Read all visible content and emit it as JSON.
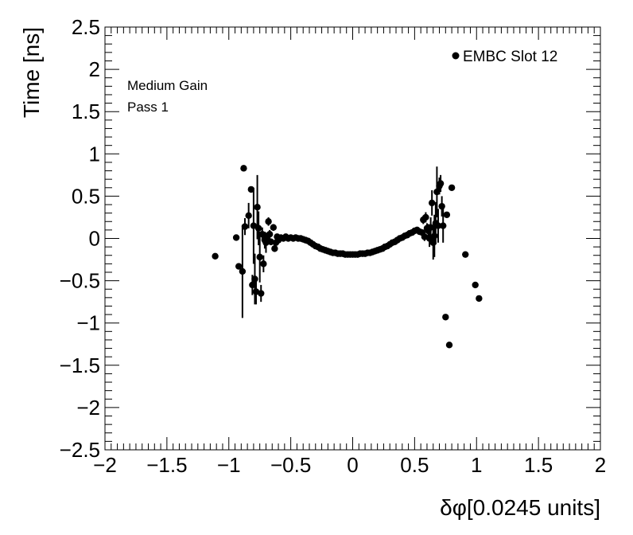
{
  "chart_data": {
    "type": "scatter",
    "title": "",
    "xlabel": "δφ[0.0245 units]",
    "ylabel": "Time [ns]",
    "xlim": [
      -2,
      2
    ],
    "ylim": [
      -2.5,
      2.5
    ],
    "x_ticks": [
      -2,
      -1.5,
      -1,
      -0.5,
      0,
      0.5,
      1,
      1.5,
      2
    ],
    "y_ticks": [
      -2.5,
      -2,
      -1.5,
      -1,
      -0.5,
      0,
      0.5,
      1,
      1.5,
      2,
      2.5
    ],
    "x_tick_labels": [
      "−2",
      "−1.5",
      "−1",
      "−0.5",
      "0",
      "0.5",
      "1",
      "1.5",
      "2"
    ],
    "y_tick_labels": [
      "−2.5",
      "−2",
      "−1.5",
      "−1",
      "−0.5",
      "0",
      "0.5",
      "1",
      "1.5",
      "2",
      "2.5"
    ],
    "grid": false,
    "legend_position": "top-right",
    "annotations": [
      "Medium Gain",
      "Pass 1"
    ],
    "series": [
      {
        "name": "EMBC Slot 12",
        "color": "#000000",
        "points": [
          {
            "x": -1.11,
            "y": -0.21,
            "err": 0
          },
          {
            "x": -0.94,
            "y": 0.01,
            "err": 0
          },
          {
            "x": -0.92,
            "y": -0.33,
            "err": 0
          },
          {
            "x": -0.89,
            "y": -0.39,
            "err": 0.55
          },
          {
            "x": -0.88,
            "y": 0.83,
            "err": 0
          },
          {
            "x": -0.87,
            "y": 0.14,
            "err": 0.1
          },
          {
            "x": -0.84,
            "y": 0.27,
            "err": 0.15
          },
          {
            "x": -0.82,
            "y": 0.58,
            "err": 0
          },
          {
            "x": -0.81,
            "y": -0.55,
            "err": 0.12
          },
          {
            "x": -0.8,
            "y": 0.15,
            "err": 0.45
          },
          {
            "x": -0.79,
            "y": -0.48,
            "err": 0.3
          },
          {
            "x": -0.78,
            "y": -0.63,
            "err": 0.15
          },
          {
            "x": -0.77,
            "y": 0.37,
            "err": 0.38
          },
          {
            "x": -0.76,
            "y": 0.12,
            "err": 0.2
          },
          {
            "x": -0.75,
            "y": -0.22,
            "err": 0.3
          },
          {
            "x": -0.74,
            "y": -0.65,
            "err": 0.1
          },
          {
            "x": -0.73,
            "y": 0.05,
            "err": 0.08
          },
          {
            "x": -0.72,
            "y": -0.3,
            "err": 0.1
          },
          {
            "x": -0.71,
            "y": -0.02,
            "err": 0.1
          },
          {
            "x": -0.7,
            "y": -0.05,
            "err": 0.12
          },
          {
            "x": -0.69,
            "y": 0.0,
            "err": 0.05
          },
          {
            "x": -0.68,
            "y": 0.2,
            "err": 0.05
          },
          {
            "x": -0.67,
            "y": 0.05,
            "err": 0.05
          },
          {
            "x": -0.66,
            "y": -0.04,
            "err": 0.04
          },
          {
            "x": -0.64,
            "y": 0.13,
            "err": 0.04
          },
          {
            "x": -0.63,
            "y": -0.12,
            "err": 0.04
          },
          {
            "x": -0.62,
            "y": -0.05,
            "err": 0.03
          },
          {
            "x": -0.61,
            "y": 0.02,
            "err": 0.03
          },
          {
            "x": -0.6,
            "y": -0.02,
            "err": 0.03
          },
          {
            "x": -0.58,
            "y": 0.01,
            "err": 0.03
          },
          {
            "x": -0.56,
            "y": 0.0,
            "err": 0.02
          },
          {
            "x": -0.54,
            "y": 0.02,
            "err": 0.02
          },
          {
            "x": -0.52,
            "y": 0.0,
            "err": 0.02
          },
          {
            "x": -0.5,
            "y": 0.01,
            "err": 0.02
          },
          {
            "x": -0.48,
            "y": 0.0,
            "err": 0.02
          },
          {
            "x": -0.46,
            "y": 0.01,
            "err": 0.01
          },
          {
            "x": -0.44,
            "y": 0.0,
            "err": 0.01
          },
          {
            "x": -0.42,
            "y": 0.0,
            "err": 0.01
          },
          {
            "x": -0.4,
            "y": -0.01,
            "err": 0.01
          },
          {
            "x": -0.38,
            "y": -0.02,
            "err": 0.01
          },
          {
            "x": -0.36,
            "y": -0.03,
            "err": 0.01
          },
          {
            "x": -0.34,
            "y": -0.05,
            "err": 0.01
          },
          {
            "x": -0.32,
            "y": -0.07,
            "err": 0.01
          },
          {
            "x": -0.3,
            "y": -0.09,
            "err": 0.01
          },
          {
            "x": -0.28,
            "y": -0.1,
            "err": 0.01
          },
          {
            "x": -0.26,
            "y": -0.12,
            "err": 0.01
          },
          {
            "x": -0.24,
            "y": -0.13,
            "err": 0.01
          },
          {
            "x": -0.22,
            "y": -0.14,
            "err": 0.01
          },
          {
            "x": -0.2,
            "y": -0.15,
            "err": 0.01
          },
          {
            "x": -0.18,
            "y": -0.16,
            "err": 0.01
          },
          {
            "x": -0.16,
            "y": -0.17,
            "err": 0.01
          },
          {
            "x": -0.14,
            "y": -0.17,
            "err": 0.01
          },
          {
            "x": -0.12,
            "y": -0.18,
            "err": 0.01
          },
          {
            "x": -0.1,
            "y": -0.18,
            "err": 0.01
          },
          {
            "x": -0.08,
            "y": -0.18,
            "err": 0.01
          },
          {
            "x": -0.06,
            "y": -0.19,
            "err": 0.01
          },
          {
            "x": -0.04,
            "y": -0.19,
            "err": 0.01
          },
          {
            "x": -0.02,
            "y": -0.19,
            "err": 0.01
          },
          {
            "x": 0.0,
            "y": -0.19,
            "err": 0.01
          },
          {
            "x": 0.02,
            "y": -0.19,
            "err": 0.01
          },
          {
            "x": 0.04,
            "y": -0.19,
            "err": 0.01
          },
          {
            "x": 0.06,
            "y": -0.18,
            "err": 0.01
          },
          {
            "x": 0.08,
            "y": -0.18,
            "err": 0.01
          },
          {
            "x": 0.1,
            "y": -0.18,
            "err": 0.01
          },
          {
            "x": 0.12,
            "y": -0.17,
            "err": 0.01
          },
          {
            "x": 0.14,
            "y": -0.17,
            "err": 0.01
          },
          {
            "x": 0.16,
            "y": -0.16,
            "err": 0.01
          },
          {
            "x": 0.18,
            "y": -0.15,
            "err": 0.01
          },
          {
            "x": 0.2,
            "y": -0.14,
            "err": 0.01
          },
          {
            "x": 0.22,
            "y": -0.13,
            "err": 0.01
          },
          {
            "x": 0.24,
            "y": -0.12,
            "err": 0.01
          },
          {
            "x": 0.26,
            "y": -0.1,
            "err": 0.01
          },
          {
            "x": 0.28,
            "y": -0.09,
            "err": 0.01
          },
          {
            "x": 0.3,
            "y": -0.07,
            "err": 0.01
          },
          {
            "x": 0.32,
            "y": -0.05,
            "err": 0.01
          },
          {
            "x": 0.34,
            "y": -0.04,
            "err": 0.01
          },
          {
            "x": 0.36,
            "y": -0.02,
            "err": 0.01
          },
          {
            "x": 0.38,
            "y": 0.0,
            "err": 0.01
          },
          {
            "x": 0.4,
            "y": 0.01,
            "err": 0.01
          },
          {
            "x": 0.42,
            "y": 0.03,
            "err": 0.02
          },
          {
            "x": 0.44,
            "y": 0.04,
            "err": 0.02
          },
          {
            "x": 0.46,
            "y": 0.06,
            "err": 0.02
          },
          {
            "x": 0.48,
            "y": 0.07,
            "err": 0.02
          },
          {
            "x": 0.5,
            "y": 0.09,
            "err": 0.02
          },
          {
            "x": 0.52,
            "y": 0.1,
            "err": 0.03
          },
          {
            "x": 0.54,
            "y": 0.08,
            "err": 0.03
          },
          {
            "x": 0.56,
            "y": 0.07,
            "err": 0.03
          },
          {
            "x": 0.57,
            "y": 0.22,
            "err": 0.05
          },
          {
            "x": 0.58,
            "y": 0.02,
            "err": 0.05
          },
          {
            "x": 0.59,
            "y": 0.25,
            "err": 0.06
          },
          {
            "x": 0.6,
            "y": 0.12,
            "err": 0.06
          },
          {
            "x": 0.61,
            "y": 0.09,
            "err": 0.08
          },
          {
            "x": 0.62,
            "y": 0.0,
            "err": 0.1
          },
          {
            "x": 0.63,
            "y": 0.13,
            "err": 0.12
          },
          {
            "x": 0.64,
            "y": 0.42,
            "err": 0.15
          },
          {
            "x": 0.65,
            "y": -0.05,
            "err": 0.2
          },
          {
            "x": 0.66,
            "y": 0.03,
            "err": 0.25
          },
          {
            "x": 0.67,
            "y": 0.18,
            "err": 0.25
          },
          {
            "x": 0.68,
            "y": 0.55,
            "err": 0.3
          },
          {
            "x": 0.69,
            "y": 0.15,
            "err": 0.2
          },
          {
            "x": 0.7,
            "y": 0.62,
            "err": 0.1
          },
          {
            "x": 0.71,
            "y": 0.65,
            "err": 0.1
          },
          {
            "x": 0.72,
            "y": 0.38,
            "err": 0.12
          },
          {
            "x": 0.73,
            "y": 0.15,
            "err": 0.2
          },
          {
            "x": 0.75,
            "y": -0.93,
            "err": 0
          },
          {
            "x": 0.76,
            "y": 0.28,
            "err": 0
          },
          {
            "x": 0.78,
            "y": -1.26,
            "err": 0
          },
          {
            "x": 0.8,
            "y": 0.6,
            "err": 0
          },
          {
            "x": 0.91,
            "y": -0.19,
            "err": 0
          },
          {
            "x": 0.99,
            "y": -0.55,
            "err": 0
          },
          {
            "x": 1.02,
            "y": -0.71,
            "err": 0
          }
        ]
      }
    ]
  }
}
